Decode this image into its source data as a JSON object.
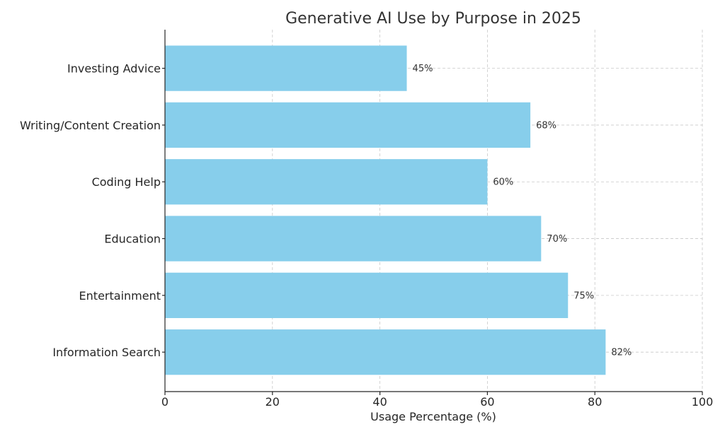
{
  "chart_data": {
    "type": "bar",
    "orientation": "horizontal",
    "title": "Generative AI Use by Purpose in 2025",
    "xlabel": "Usage Percentage (%)",
    "ylabel": "",
    "categories": [
      "Investing Advice",
      "Writing/Content Creation",
      "Coding Help",
      "Education",
      "Entertainment",
      "Information Search"
    ],
    "values": [
      45,
      68,
      60,
      70,
      75,
      82
    ],
    "value_labels": [
      "45%",
      "68%",
      "60%",
      "70%",
      "75%",
      "82%"
    ],
    "xlim": [
      0,
      100
    ],
    "xticks": [
      0,
      20,
      40,
      60,
      80,
      100
    ],
    "xtick_labels": [
      "0",
      "20",
      "40",
      "60",
      "80",
      "100"
    ],
    "grid": true,
    "colors": {
      "bar": "#87CEEB"
    }
  }
}
